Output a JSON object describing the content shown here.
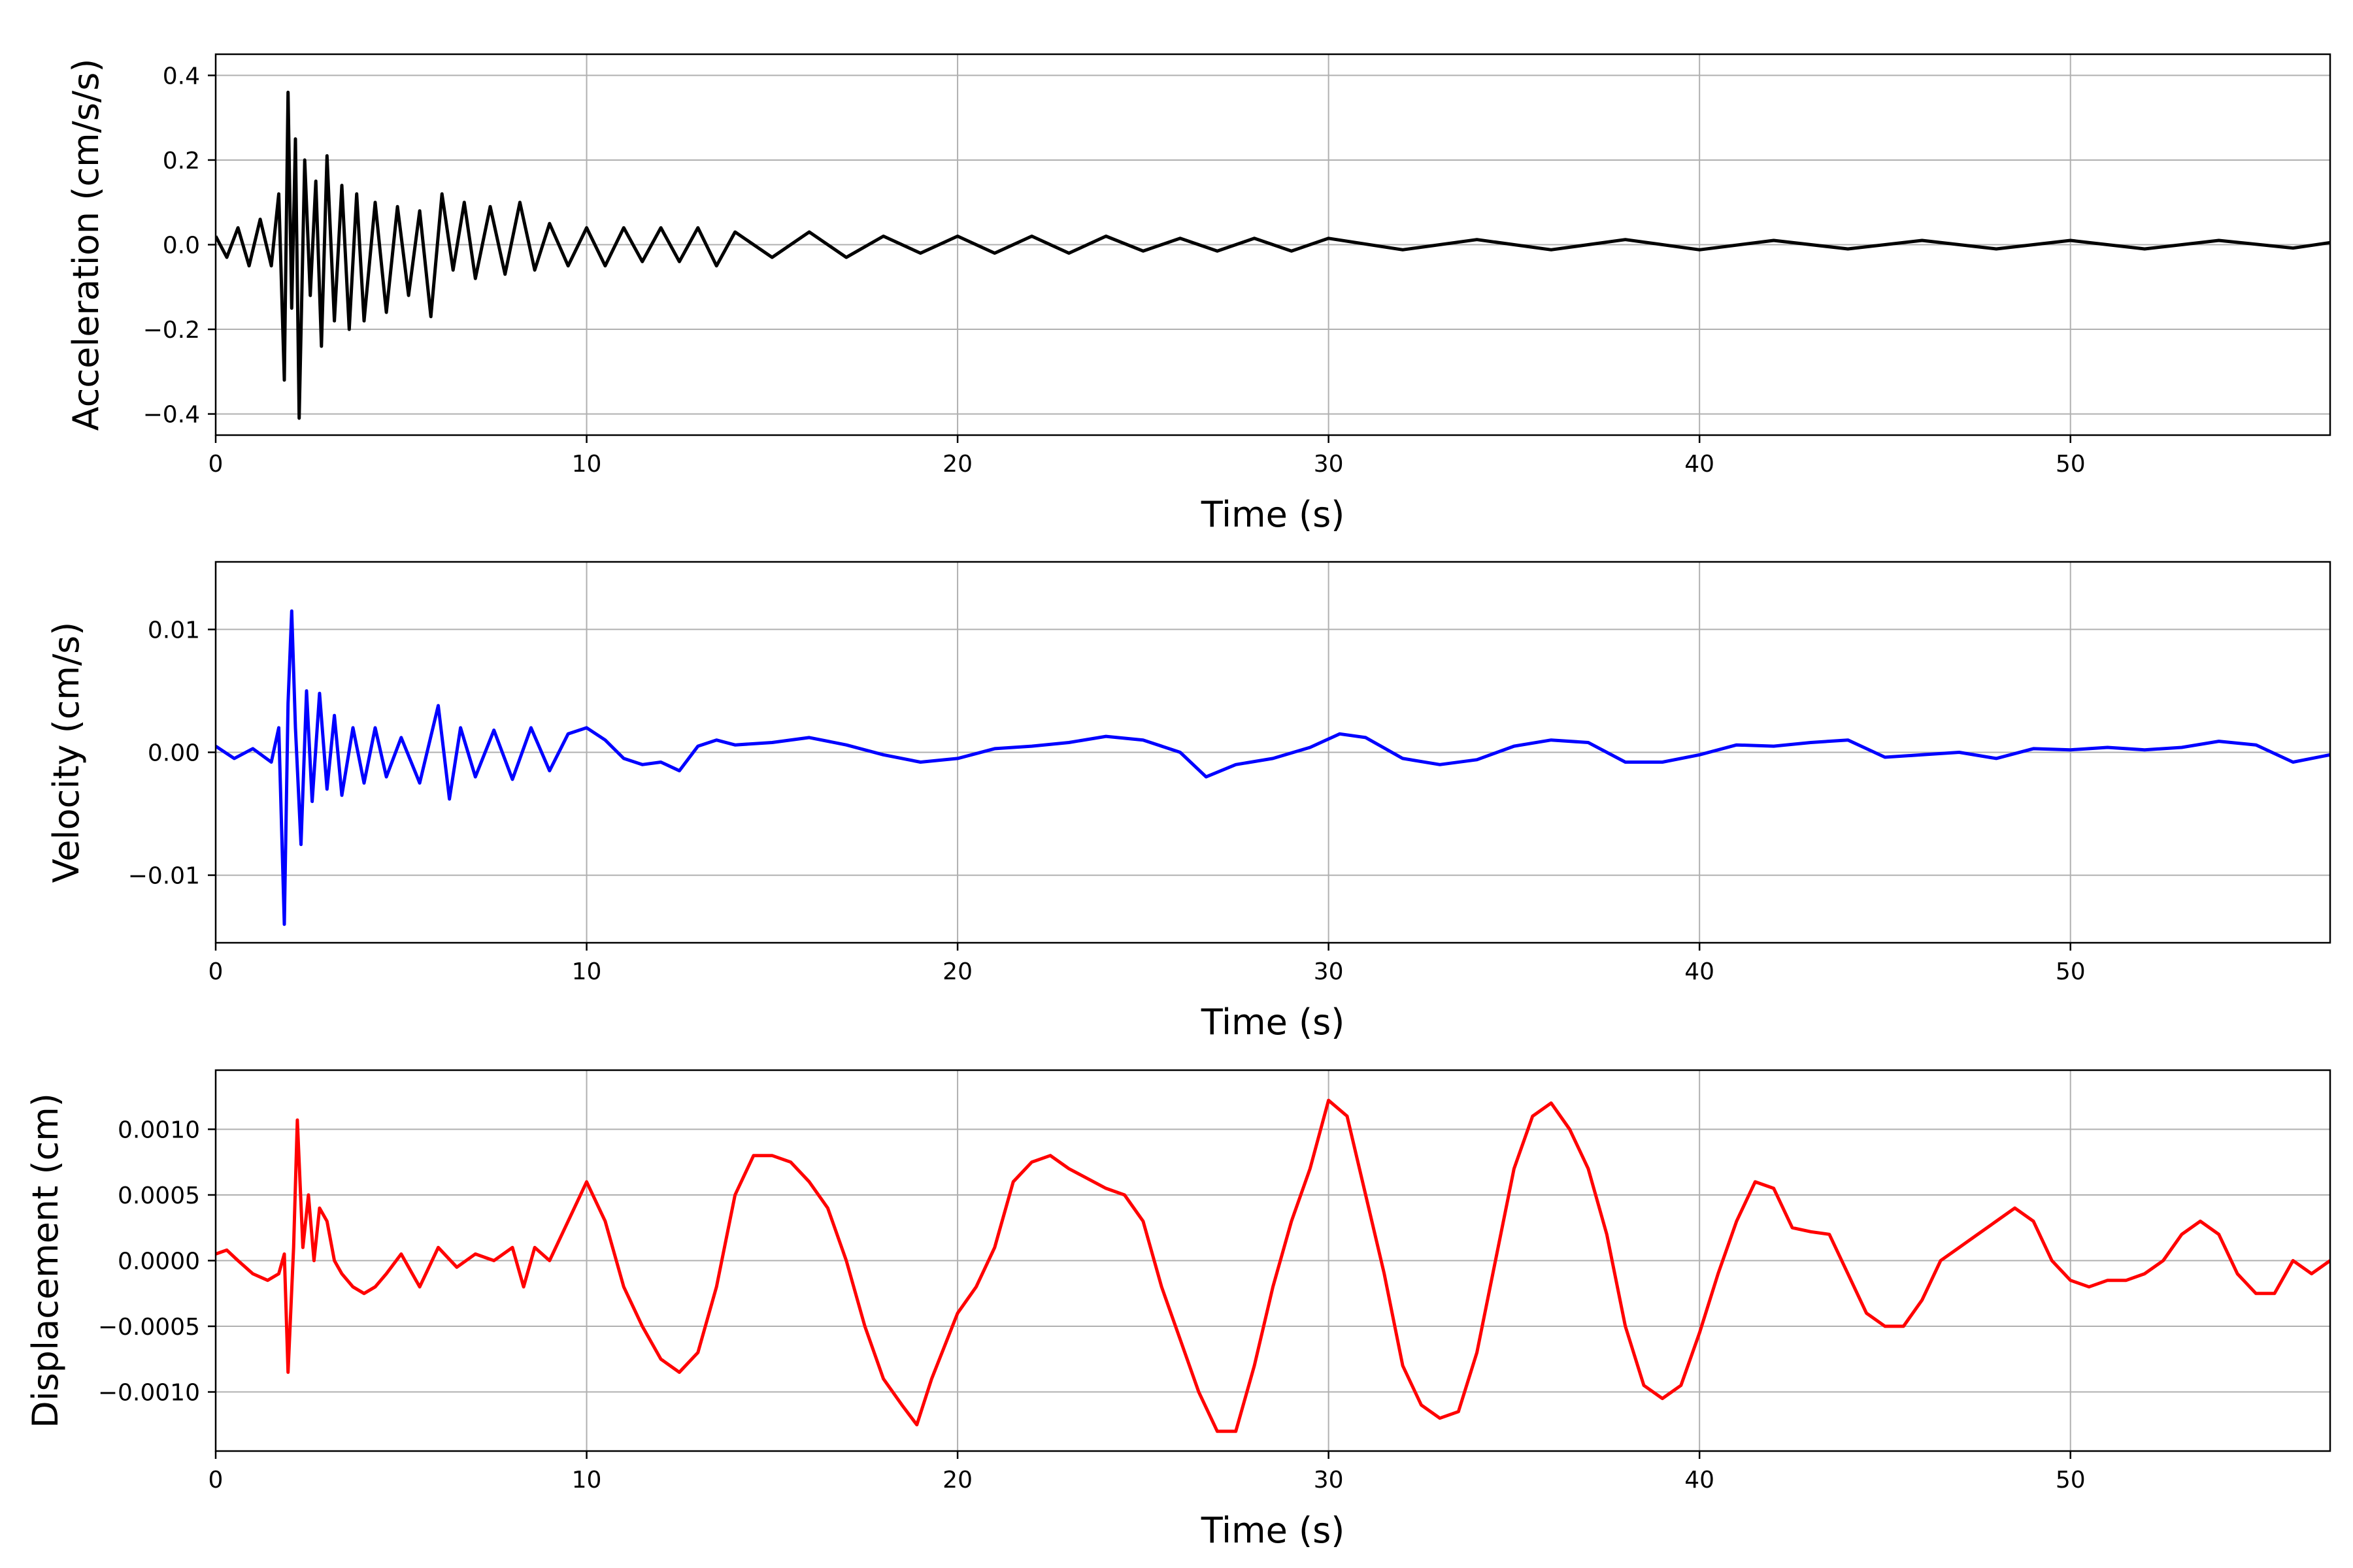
{
  "chart_data": [
    {
      "type": "line",
      "panel": "acceleration",
      "xlabel": "Time (s)",
      "ylabel": "Acceleration (cm/s/s)",
      "xlim": [
        0,
        57
      ],
      "ylim": [
        -0.45,
        0.45
      ],
      "xticks": [
        0,
        10,
        20,
        30,
        40,
        50
      ],
      "xtick_labels": [
        "0",
        "10",
        "20",
        "30",
        "40",
        "50"
      ],
      "yticks": [
        -0.4,
        -0.2,
        0.0,
        0.2,
        0.4
      ],
      "ytick_labels": [
        "−0.4",
        "−0.2",
        "0.0",
        "0.2",
        "0.4"
      ],
      "grid": true,
      "color": "#000000",
      "x": [
        0,
        0.3,
        0.6,
        0.9,
        1.2,
        1.5,
        1.7,
        1.85,
        1.95,
        2.05,
        2.15,
        2.25,
        2.4,
        2.55,
        2.7,
        2.85,
        3.0,
        3.2,
        3.4,
        3.6,
        3.8,
        4.0,
        4.3,
        4.6,
        4.9,
        5.2,
        5.5,
        5.8,
        6.1,
        6.4,
        6.7,
        7.0,
        7.4,
        7.8,
        8.2,
        8.6,
        9.0,
        9.5,
        10.0,
        10.5,
        11.0,
        11.5,
        12.0,
        12.5,
        13.0,
        13.5,
        14.0,
        15.0,
        16.0,
        17.0,
        18.0,
        19.0,
        20.0,
        21.0,
        22.0,
        23.0,
        24.0,
        25.0,
        26.0,
        27.0,
        28.0,
        29.0,
        30.0,
        32.0,
        34.0,
        36.0,
        38.0,
        40.0,
        42.0,
        44.0,
        46.0,
        48.0,
        50.0,
        52.0,
        54.0,
        56.0,
        57.0
      ],
      "y": [
        0.02,
        -0.03,
        0.04,
        -0.05,
        0.06,
        -0.05,
        0.12,
        -0.32,
        0.36,
        -0.15,
        0.25,
        -0.41,
        0.2,
        -0.12,
        0.15,
        -0.24,
        0.21,
        -0.18,
        0.14,
        -0.2,
        0.12,
        -0.18,
        0.1,
        -0.16,
        0.09,
        -0.12,
        0.08,
        -0.17,
        0.12,
        -0.06,
        0.1,
        -0.08,
        0.09,
        -0.07,
        0.1,
        -0.06,
        0.05,
        -0.05,
        0.04,
        -0.05,
        0.04,
        -0.04,
        0.04,
        -0.04,
        0.04,
        -0.05,
        0.03,
        -0.03,
        0.03,
        -0.03,
        0.02,
        -0.02,
        0.02,
        -0.02,
        0.02,
        -0.02,
        0.02,
        -0.015,
        0.015,
        -0.015,
        0.015,
        -0.015,
        0.015,
        -0.012,
        0.012,
        -0.012,
        0.012,
        -0.012,
        0.01,
        -0.01,
        0.01,
        -0.01,
        0.01,
        -0.01,
        0.01,
        -0.008,
        0.005
      ]
    },
    {
      "type": "line",
      "panel": "velocity",
      "xlabel": "Time (s)",
      "ylabel": "Velocity (cm/s)",
      "xlim": [
        0,
        57
      ],
      "ylim": [
        -0.0155,
        0.0155
      ],
      "xticks": [
        0,
        10,
        20,
        30,
        40,
        50
      ],
      "xtick_labels": [
        "0",
        "10",
        "20",
        "30",
        "40",
        "50"
      ],
      "yticks": [
        -0.01,
        0.0,
        0.01
      ],
      "ytick_labels": [
        "−0.01",
        "0.00",
        "0.01"
      ],
      "grid": true,
      "color": "#0000ff",
      "x": [
        0,
        0.5,
        1.0,
        1.5,
        1.7,
        1.85,
        1.95,
        2.05,
        2.15,
        2.3,
        2.45,
        2.6,
        2.8,
        3.0,
        3.2,
        3.4,
        3.7,
        4.0,
        4.3,
        4.6,
        5.0,
        5.5,
        6.0,
        6.3,
        6.6,
        7.0,
        7.5,
        8.0,
        8.5,
        9.0,
        9.5,
        10.0,
        10.5,
        11.0,
        11.5,
        12.0,
        12.5,
        13.0,
        13.5,
        14.0,
        15.0,
        16.0,
        17.0,
        18.0,
        19.0,
        20.0,
        21.0,
        22.0,
        23.0,
        24.0,
        25.0,
        26.0,
        26.7,
        27.5,
        28.5,
        29.5,
        30.3,
        31.0,
        32.0,
        33.0,
        34.0,
        35.0,
        36.0,
        37.0,
        38.0,
        39.0,
        40.0,
        41.0,
        42.0,
        43.0,
        44.0,
        45.0,
        46.0,
        47.0,
        48.0,
        49.0,
        50.0,
        51.0,
        52.0,
        53.0,
        54.0,
        55.0,
        56.0,
        57.0
      ],
      "y": [
        0.0005,
        -0.0005,
        0.0003,
        -0.0008,
        0.002,
        -0.014,
        0.004,
        0.0115,
        0.002,
        -0.0075,
        0.005,
        -0.004,
        0.0048,
        -0.003,
        0.003,
        -0.0035,
        0.002,
        -0.0025,
        0.002,
        -0.002,
        0.0012,
        -0.0025,
        0.0038,
        -0.0038,
        0.002,
        -0.002,
        0.0018,
        -0.0022,
        0.002,
        -0.0015,
        0.0015,
        0.002,
        0.001,
        -0.0005,
        -0.001,
        -0.0008,
        -0.0015,
        0.0005,
        0.001,
        0.0006,
        0.0008,
        0.0012,
        0.0006,
        -0.0002,
        -0.0008,
        -0.0005,
        0.0003,
        0.0005,
        0.0008,
        0.0013,
        0.001,
        0.0,
        -0.002,
        -0.001,
        -0.0005,
        0.0004,
        0.0015,
        0.0012,
        -0.0005,
        -0.001,
        -0.0006,
        0.0005,
        0.001,
        0.0008,
        -0.0008,
        -0.0008,
        -0.0002,
        0.0006,
        0.0005,
        0.0008,
        0.001,
        -0.0004,
        -0.0002,
        0.0,
        -0.0005,
        0.0003,
        0.0002,
        0.0004,
        0.0002,
        0.0004,
        0.0009,
        0.0006,
        -0.0008,
        -0.0002
      ]
    },
    {
      "type": "line",
      "panel": "displacement",
      "xlabel": "Time (s)",
      "ylabel": "Displacement (cm)",
      "xlim": [
        0,
        57
      ],
      "ylim": [
        -0.00145,
        0.00145
      ],
      "xticks": [
        0,
        10,
        20,
        30,
        40,
        50
      ],
      "xtick_labels": [
        "0",
        "10",
        "20",
        "30",
        "40",
        "50"
      ],
      "yticks": [
        -0.001,
        -0.0005,
        0.0,
        0.0005,
        0.001
      ],
      "ytick_labels": [
        "−0.0010",
        "−0.0005",
        "0.0000",
        "0.0005",
        "0.0010"
      ],
      "grid": true,
      "color": "#ff0000",
      "x": [
        0,
        0.3,
        0.6,
        1.0,
        1.4,
        1.7,
        1.85,
        1.95,
        2.1,
        2.2,
        2.35,
        2.5,
        2.65,
        2.8,
        3.0,
        3.2,
        3.4,
        3.7,
        4.0,
        4.3,
        4.6,
        5.0,
        5.5,
        6.0,
        6.5,
        7.0,
        7.5,
        8.0,
        8.3,
        8.6,
        9.0,
        9.5,
        10.0,
        10.5,
        11.0,
        11.5,
        12.0,
        12.5,
        13.0,
        13.5,
        14.0,
        14.5,
        15.0,
        15.5,
        16.0,
        16.5,
        17.0,
        17.5,
        18.0,
        18.5,
        18.9,
        19.3,
        20.0,
        20.5,
        21.0,
        21.5,
        22.0,
        22.5,
        23.0,
        24.0,
        24.5,
        25.0,
        25.5,
        26.0,
        26.5,
        27.0,
        27.5,
        28.0,
        28.5,
        29.0,
        29.5,
        30.0,
        30.5,
        31.0,
        31.5,
        32.0,
        32.5,
        33.0,
        33.5,
        34.0,
        34.5,
        35.0,
        35.5,
        36.0,
        36.5,
        37.0,
        37.5,
        38.0,
        38.5,
        39.0,
        39.5,
        40.0,
        40.5,
        41.0,
        41.5,
        42.0,
        42.5,
        43.0,
        43.5,
        44.0,
        44.5,
        45.0,
        45.5,
        46.0,
        46.5,
        47.0,
        47.5,
        48.0,
        48.5,
        49.0,
        49.5,
        50.0,
        50.5,
        51.0,
        51.5,
        52.0,
        52.5,
        53.0,
        53.5,
        54.0,
        54.5,
        55.0,
        55.5,
        56.0,
        56.5,
        57.0
      ],
      "y": [
        5e-05,
        8e-05,
        0.0,
        -0.0001,
        -0.00015,
        -0.0001,
        5e-05,
        -0.00085,
        0.0001,
        0.00107,
        0.0001,
        0.0005,
        0.0,
        0.0004,
        0.0003,
        0.0,
        -0.0001,
        -0.0002,
        -0.00025,
        -0.0002,
        -0.0001,
        5e-05,
        -0.0002,
        0.0001,
        -5e-05,
        5e-05,
        0.0,
        0.0001,
        -0.0002,
        0.0001,
        0.0,
        0.0003,
        0.0006,
        0.0003,
        -0.0002,
        -0.0005,
        -0.00075,
        -0.00085,
        -0.0007,
        -0.0002,
        0.0005,
        0.0008,
        0.0008,
        0.00075,
        0.0006,
        0.0004,
        0.0,
        -0.0005,
        -0.0009,
        -0.0011,
        -0.00125,
        -0.0009,
        -0.0004,
        -0.0002,
        0.0001,
        0.0006,
        0.00075,
        0.0008,
        0.0007,
        0.00055,
        0.0005,
        0.0003,
        -0.0002,
        -0.0006,
        -0.001,
        -0.0013,
        -0.0013,
        -0.0008,
        -0.0002,
        0.0003,
        0.0007,
        0.00122,
        0.0011,
        0.0005,
        -0.0001,
        -0.0008,
        -0.0011,
        -0.0012,
        -0.00115,
        -0.0007,
        0.0,
        0.0007,
        0.0011,
        0.0012,
        0.001,
        0.0007,
        0.0002,
        -0.0005,
        -0.00095,
        -0.00105,
        -0.00095,
        -0.00055,
        -0.0001,
        0.0003,
        0.0006,
        0.00055,
        0.00025,
        0.00022,
        0.0002,
        -0.0001,
        -0.0004,
        -0.0005,
        -0.0005,
        -0.0003,
        0.0,
        0.0001,
        0.0002,
        0.0003,
        0.0004,
        0.0003,
        0.0,
        -0.00015,
        -0.0002,
        -0.00015,
        -0.00015,
        -0.0001,
        0.0,
        0.0002,
        0.0003,
        0.0002,
        -0.0001,
        -0.00025,
        -0.00025,
        0.0,
        -0.0001,
        0.0
      ]
    }
  ]
}
